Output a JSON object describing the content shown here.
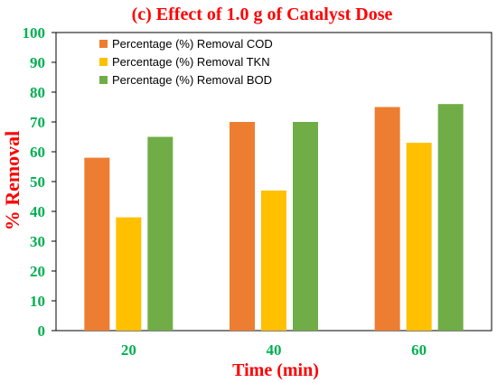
{
  "chart_data": {
    "type": "bar",
    "title": "(c) Effect of 1.0 g of Catalyst Dose",
    "xlabel": "Time (min)",
    "ylabel": "% Removal",
    "categories": [
      "20",
      "40",
      "60"
    ],
    "ylim": [
      0,
      100
    ],
    "yticks": [
      0,
      10,
      20,
      30,
      40,
      50,
      60,
      70,
      80,
      90,
      100
    ],
    "grid": false,
    "legend_position": "top-left",
    "series": [
      {
        "name": "Percentage (%) Removal COD",
        "values": [
          58,
          70,
          75
        ],
        "color": "#ed7d31"
      },
      {
        "name": "Percentage (%) Removal TKN",
        "values": [
          38,
          47,
          63
        ],
        "color": "#ffc000"
      },
      {
        "name": "Percentage (%) Removal BOD",
        "values": [
          65,
          70,
          76
        ],
        "color": "#70ad47"
      }
    ],
    "colors": {
      "title": "#ff0000",
      "ylabel": "#ff0000",
      "xlabel": "#ff0000",
      "ticks": "#00b050"
    }
  }
}
